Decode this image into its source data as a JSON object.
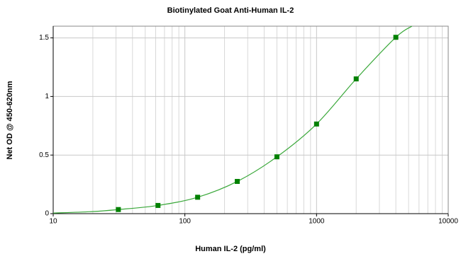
{
  "chart_data": {
    "type": "scatter",
    "title": "Biotinylated Goat Anti-Human IL-2",
    "x_label": "Human IL-2 (pg/ml)",
    "y_label": "Net OD @ 450-620nm",
    "xscale": "log",
    "grid": true,
    "xlim": [
      10,
      10000
    ],
    "xticks": [
      10,
      100,
      1000,
      10000
    ],
    "xminorticks": [
      20,
      30,
      40,
      50,
      60,
      70,
      80,
      90,
      200,
      300,
      400,
      500,
      600,
      700,
      800,
      900,
      2000,
      3000,
      4000,
      5000,
      6000,
      7000,
      8000,
      9000
    ],
    "ylim": [
      0,
      1.6
    ],
    "yticks": [
      0,
      0.5,
      1,
      1.5
    ],
    "series": [
      {
        "style": "markers",
        "color": "#008000",
        "x": [
          31.25,
          62.5,
          125,
          250,
          500,
          1000,
          2000,
          4000
        ],
        "values": [
          0.035,
          0.07,
          0.14,
          0.275,
          0.485,
          0.765,
          1.15,
          1.505
        ]
      },
      {
        "style": "line",
        "color": "#3aa83a",
        "x": [
          10,
          20,
          31.25,
          62.5,
          125,
          250,
          500,
          1000,
          2000,
          4000,
          5300
        ],
        "values": [
          0.005,
          0.018,
          0.035,
          0.07,
          0.14,
          0.275,
          0.485,
          0.765,
          1.15,
          1.505,
          1.6
        ]
      }
    ]
  }
}
